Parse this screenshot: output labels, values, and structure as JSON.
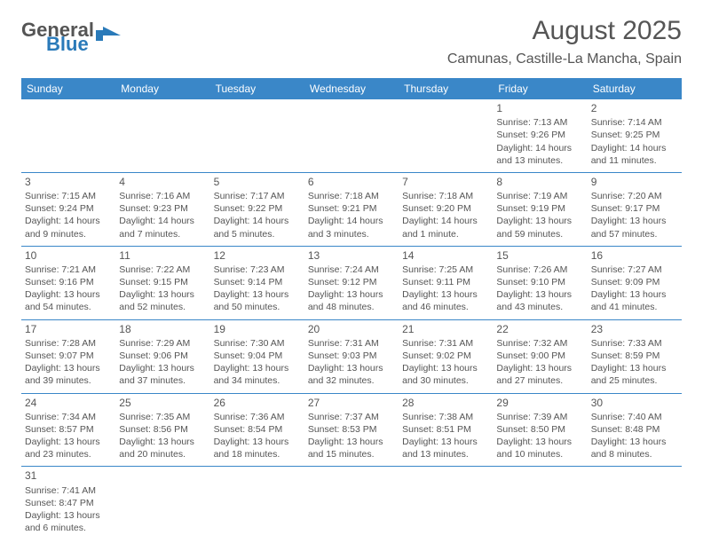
{
  "logo": {
    "main": "General",
    "sub": "Blue"
  },
  "title": "August 2025",
  "location": "Camunas, Castille-La Mancha, Spain",
  "colors": {
    "header_bg": "#3a87c8",
    "header_text": "#ffffff",
    "text": "#555555",
    "rule": "#3a87c8"
  },
  "dayHeaders": [
    "Sunday",
    "Monday",
    "Tuesday",
    "Wednesday",
    "Thursday",
    "Friday",
    "Saturday"
  ],
  "weeks": [
    [
      null,
      null,
      null,
      null,
      null,
      {
        "n": "1",
        "sr": "Sunrise: 7:13 AM",
        "ss": "Sunset: 9:26 PM",
        "d1": "Daylight: 14 hours",
        "d2": "and 13 minutes."
      },
      {
        "n": "2",
        "sr": "Sunrise: 7:14 AM",
        "ss": "Sunset: 9:25 PM",
        "d1": "Daylight: 14 hours",
        "d2": "and 11 minutes."
      }
    ],
    [
      {
        "n": "3",
        "sr": "Sunrise: 7:15 AM",
        "ss": "Sunset: 9:24 PM",
        "d1": "Daylight: 14 hours",
        "d2": "and 9 minutes."
      },
      {
        "n": "4",
        "sr": "Sunrise: 7:16 AM",
        "ss": "Sunset: 9:23 PM",
        "d1": "Daylight: 14 hours",
        "d2": "and 7 minutes."
      },
      {
        "n": "5",
        "sr": "Sunrise: 7:17 AM",
        "ss": "Sunset: 9:22 PM",
        "d1": "Daylight: 14 hours",
        "d2": "and 5 minutes."
      },
      {
        "n": "6",
        "sr": "Sunrise: 7:18 AM",
        "ss": "Sunset: 9:21 PM",
        "d1": "Daylight: 14 hours",
        "d2": "and 3 minutes."
      },
      {
        "n": "7",
        "sr": "Sunrise: 7:18 AM",
        "ss": "Sunset: 9:20 PM",
        "d1": "Daylight: 14 hours",
        "d2": "and 1 minute."
      },
      {
        "n": "8",
        "sr": "Sunrise: 7:19 AM",
        "ss": "Sunset: 9:19 PM",
        "d1": "Daylight: 13 hours",
        "d2": "and 59 minutes."
      },
      {
        "n": "9",
        "sr": "Sunrise: 7:20 AM",
        "ss": "Sunset: 9:17 PM",
        "d1": "Daylight: 13 hours",
        "d2": "and 57 minutes."
      }
    ],
    [
      {
        "n": "10",
        "sr": "Sunrise: 7:21 AM",
        "ss": "Sunset: 9:16 PM",
        "d1": "Daylight: 13 hours",
        "d2": "and 54 minutes."
      },
      {
        "n": "11",
        "sr": "Sunrise: 7:22 AM",
        "ss": "Sunset: 9:15 PM",
        "d1": "Daylight: 13 hours",
        "d2": "and 52 minutes."
      },
      {
        "n": "12",
        "sr": "Sunrise: 7:23 AM",
        "ss": "Sunset: 9:14 PM",
        "d1": "Daylight: 13 hours",
        "d2": "and 50 minutes."
      },
      {
        "n": "13",
        "sr": "Sunrise: 7:24 AM",
        "ss": "Sunset: 9:12 PM",
        "d1": "Daylight: 13 hours",
        "d2": "and 48 minutes."
      },
      {
        "n": "14",
        "sr": "Sunrise: 7:25 AM",
        "ss": "Sunset: 9:11 PM",
        "d1": "Daylight: 13 hours",
        "d2": "and 46 minutes."
      },
      {
        "n": "15",
        "sr": "Sunrise: 7:26 AM",
        "ss": "Sunset: 9:10 PM",
        "d1": "Daylight: 13 hours",
        "d2": "and 43 minutes."
      },
      {
        "n": "16",
        "sr": "Sunrise: 7:27 AM",
        "ss": "Sunset: 9:09 PM",
        "d1": "Daylight: 13 hours",
        "d2": "and 41 minutes."
      }
    ],
    [
      {
        "n": "17",
        "sr": "Sunrise: 7:28 AM",
        "ss": "Sunset: 9:07 PM",
        "d1": "Daylight: 13 hours",
        "d2": "and 39 minutes."
      },
      {
        "n": "18",
        "sr": "Sunrise: 7:29 AM",
        "ss": "Sunset: 9:06 PM",
        "d1": "Daylight: 13 hours",
        "d2": "and 37 minutes."
      },
      {
        "n": "19",
        "sr": "Sunrise: 7:30 AM",
        "ss": "Sunset: 9:04 PM",
        "d1": "Daylight: 13 hours",
        "d2": "and 34 minutes."
      },
      {
        "n": "20",
        "sr": "Sunrise: 7:31 AM",
        "ss": "Sunset: 9:03 PM",
        "d1": "Daylight: 13 hours",
        "d2": "and 32 minutes."
      },
      {
        "n": "21",
        "sr": "Sunrise: 7:31 AM",
        "ss": "Sunset: 9:02 PM",
        "d1": "Daylight: 13 hours",
        "d2": "and 30 minutes."
      },
      {
        "n": "22",
        "sr": "Sunrise: 7:32 AM",
        "ss": "Sunset: 9:00 PM",
        "d1": "Daylight: 13 hours",
        "d2": "and 27 minutes."
      },
      {
        "n": "23",
        "sr": "Sunrise: 7:33 AM",
        "ss": "Sunset: 8:59 PM",
        "d1": "Daylight: 13 hours",
        "d2": "and 25 minutes."
      }
    ],
    [
      {
        "n": "24",
        "sr": "Sunrise: 7:34 AM",
        "ss": "Sunset: 8:57 PM",
        "d1": "Daylight: 13 hours",
        "d2": "and 23 minutes."
      },
      {
        "n": "25",
        "sr": "Sunrise: 7:35 AM",
        "ss": "Sunset: 8:56 PM",
        "d1": "Daylight: 13 hours",
        "d2": "and 20 minutes."
      },
      {
        "n": "26",
        "sr": "Sunrise: 7:36 AM",
        "ss": "Sunset: 8:54 PM",
        "d1": "Daylight: 13 hours",
        "d2": "and 18 minutes."
      },
      {
        "n": "27",
        "sr": "Sunrise: 7:37 AM",
        "ss": "Sunset: 8:53 PM",
        "d1": "Daylight: 13 hours",
        "d2": "and 15 minutes."
      },
      {
        "n": "28",
        "sr": "Sunrise: 7:38 AM",
        "ss": "Sunset: 8:51 PM",
        "d1": "Daylight: 13 hours",
        "d2": "and 13 minutes."
      },
      {
        "n": "29",
        "sr": "Sunrise: 7:39 AM",
        "ss": "Sunset: 8:50 PM",
        "d1": "Daylight: 13 hours",
        "d2": "and 10 minutes."
      },
      {
        "n": "30",
        "sr": "Sunrise: 7:40 AM",
        "ss": "Sunset: 8:48 PM",
        "d1": "Daylight: 13 hours",
        "d2": "and 8 minutes."
      }
    ],
    [
      {
        "n": "31",
        "sr": "Sunrise: 7:41 AM",
        "ss": "Sunset: 8:47 PM",
        "d1": "Daylight: 13 hours",
        "d2": "and 6 minutes."
      },
      null,
      null,
      null,
      null,
      null,
      null
    ]
  ]
}
